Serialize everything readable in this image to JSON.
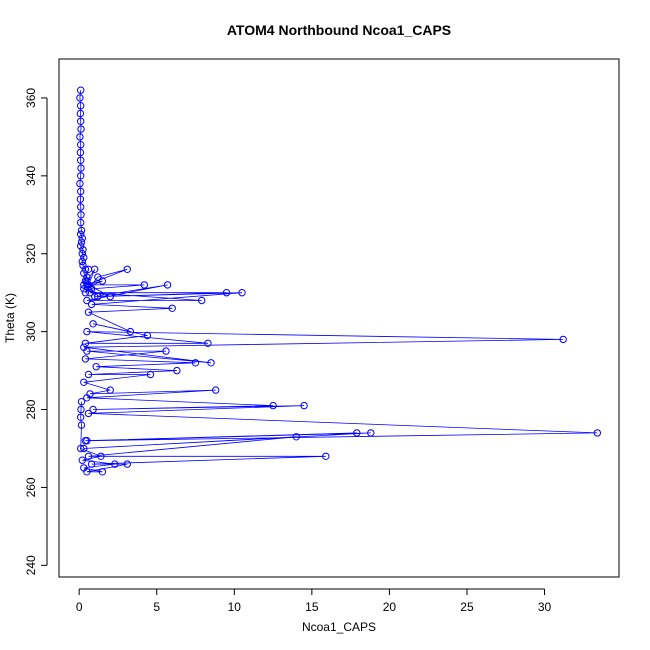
{
  "chart_data": {
    "type": "scatter",
    "title": "ATOM4 Northbound Ncoa1_CAPS",
    "xlabel": "Ncoa1_CAPS",
    "ylabel": "Theta (K)",
    "xlim": [
      -1.3,
      34.8
    ],
    "ylim": [
      237,
      370
    ],
    "xticks": [
      0,
      5,
      10,
      15,
      20,
      25,
      30
    ],
    "yticks": [
      240,
      260,
      280,
      300,
      320,
      340,
      360
    ],
    "grid": false,
    "legend": "none",
    "color": "#0000ff",
    "marker": "open-circle",
    "connected": true,
    "series": [
      {
        "x": [
          0.1,
          0.05,
          0.1,
          0.08,
          0.1,
          0.12,
          0.05,
          0.1,
          0.08,
          0.1,
          0.12,
          0.1,
          0.05,
          0.1,
          0.08,
          0.1,
          0.12,
          0.1,
          0.15,
          0.1,
          0.2,
          0.15,
          0.1,
          0.25,
          0.2,
          0.3,
          0.2,
          0.25,
          0.4,
          0.3,
          0.5,
          0.4,
          0.6,
          0.3,
          0.8,
          0.5,
          1.0,
          0.4,
          1.2,
          3.1,
          0.5,
          1.5,
          0.3,
          2.0,
          0.6,
          4.2,
          0.8,
          1.0,
          5.7,
          0.5,
          7.9,
          0.7,
          9.5,
          1.2,
          10.5,
          0.8,
          6.0,
          0.6,
          3.3,
          0.9,
          4.4,
          0.4,
          8.3,
          0.5,
          31.2,
          0.3,
          8.5,
          0.5,
          5.6,
          0.4,
          7.5,
          1.1,
          6.3,
          0.6,
          4.6,
          0.3,
          2.0,
          0.7,
          8.8,
          0.5,
          12.5,
          0.9,
          14.5,
          0.6,
          33.4,
          0.5,
          17.9,
          0.4,
          18.8,
          0.3,
          14.0,
          0.6,
          15.9,
          0.8,
          3.1,
          0.5,
          1.5,
          0.3,
          2.3,
          0.2,
          1.4,
          0.1,
          0.15,
          0.1,
          0.12,
          0.15
        ],
        "y": [
          362,
          360,
          358,
          356,
          354,
          352,
          350,
          348,
          346,
          344,
          342,
          340,
          338,
          336,
          334,
          332,
          330,
          328,
          326,
          325,
          324,
          323,
          322,
          321,
          320,
          319,
          318,
          317,
          316,
          315,
          314,
          313,
          316,
          312,
          311,
          313,
          316,
          310,
          314,
          316,
          312,
          313,
          311,
          309,
          312,
          312,
          311,
          309,
          312,
          308,
          308,
          310,
          310,
          309,
          310,
          307,
          306,
          305,
          300,
          302,
          299,
          297,
          297,
          300,
          298,
          296,
          292,
          295,
          295,
          293,
          292,
          291,
          290,
          289,
          289,
          287,
          285,
          284,
          285,
          283,
          281,
          280,
          281,
          279,
          274,
          272,
          274,
          272,
          274,
          270,
          273,
          268,
          268,
          266,
          266,
          264,
          264,
          265,
          266,
          267,
          268,
          270,
          276,
          278,
          280,
          282
        ]
      }
    ]
  }
}
